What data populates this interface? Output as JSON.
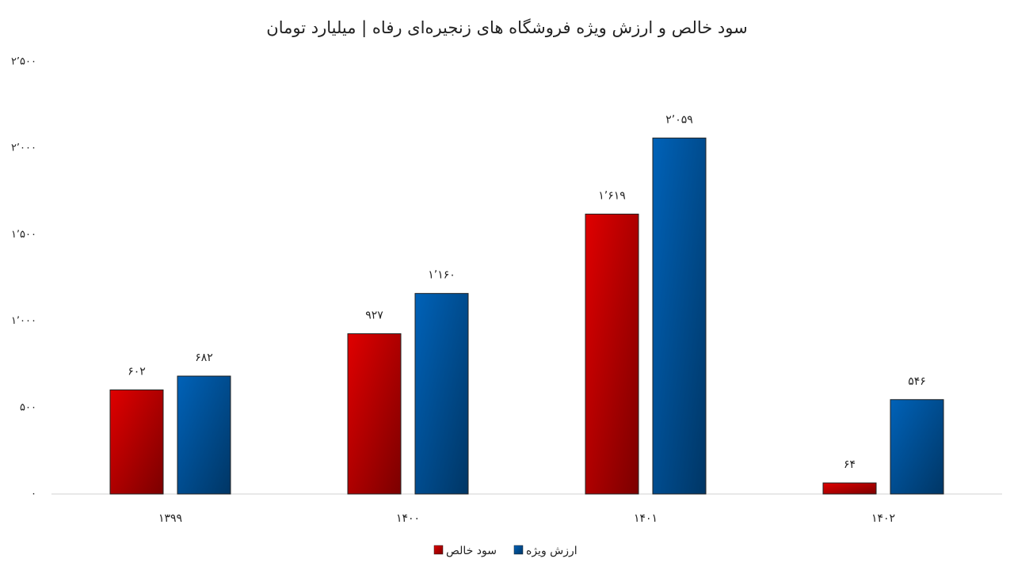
{
  "chart_data": {
    "type": "bar",
    "title": "سود خالص و ارزش ویژه فروشگاه های زنجیره‌ای رفاه | میلیارد تومان",
    "categories": [
      "۱۳۹۹",
      "۱۴۰۰",
      "۱۴۰۱",
      "۱۴۰۲"
    ],
    "series": [
      {
        "name": "سود خالص",
        "color": "#e00000",
        "values": [
          602,
          927,
          1619,
          64
        ],
        "value_labels": [
          "۶۰۲",
          "۹۲۷",
          "۱٬۶۱۹",
          "۶۴"
        ]
      },
      {
        "name": "ارزش ویژه",
        "color": "#0062b8",
        "values": [
          682,
          1160,
          2059,
          546
        ],
        "value_labels": [
          "۶۸۲",
          "۱٬۱۶۰",
          "۲٬۰۵۹",
          "۵۴۶"
        ]
      }
    ],
    "ylim": [
      0,
      2500
    ],
    "yticks": [
      {
        "value": 0,
        "label": "۰"
      },
      {
        "value": 500,
        "label": "۵۰۰"
      },
      {
        "value": 1000,
        "label": "۱٬۰۰۰"
      },
      {
        "value": 1500,
        "label": "۱٬۵۰۰"
      },
      {
        "value": 2000,
        "label": "۲٬۰۰۰"
      },
      {
        "value": 2500,
        "label": "۲٬۵۰۰"
      }
    ],
    "grid": false,
    "legend": "bottom"
  }
}
